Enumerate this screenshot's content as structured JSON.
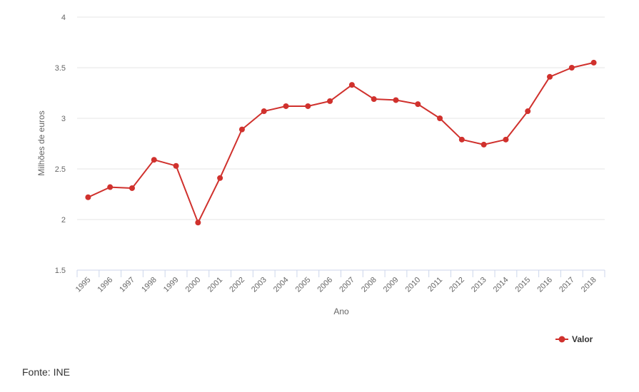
{
  "chart_data": {
    "type": "line",
    "x": [
      "1995",
      "1996",
      "1997",
      "1998",
      "1999",
      "2000",
      "2001",
      "2002",
      "2003",
      "2004",
      "2005",
      "2006",
      "2007",
      "2008",
      "2009",
      "2010",
      "2011",
      "2012",
      "2013",
      "2014",
      "2015",
      "2016",
      "2017",
      "2018"
    ],
    "series": [
      {
        "name": "Valor",
        "color": "#d0312d",
        "values": [
          2.22,
          2.32,
          2.31,
          2.59,
          2.53,
          1.97,
          2.41,
          2.89,
          3.07,
          3.12,
          3.12,
          3.17,
          3.33,
          3.19,
          3.18,
          3.14,
          3.0,
          2.79,
          2.74,
          2.79,
          3.07,
          3.41,
          3.5,
          3.55
        ]
      }
    ],
    "xlabel": "Ano",
    "ylabel": "Milhões de euros",
    "ylim": [
      1.5,
      4
    ],
    "yticks": [
      "1.5",
      "2",
      "2.5",
      "3",
      "3.5",
      "4"
    ],
    "grid": "horizontal",
    "legend_position": "bottom-right"
  },
  "source": "Fonte: INE"
}
